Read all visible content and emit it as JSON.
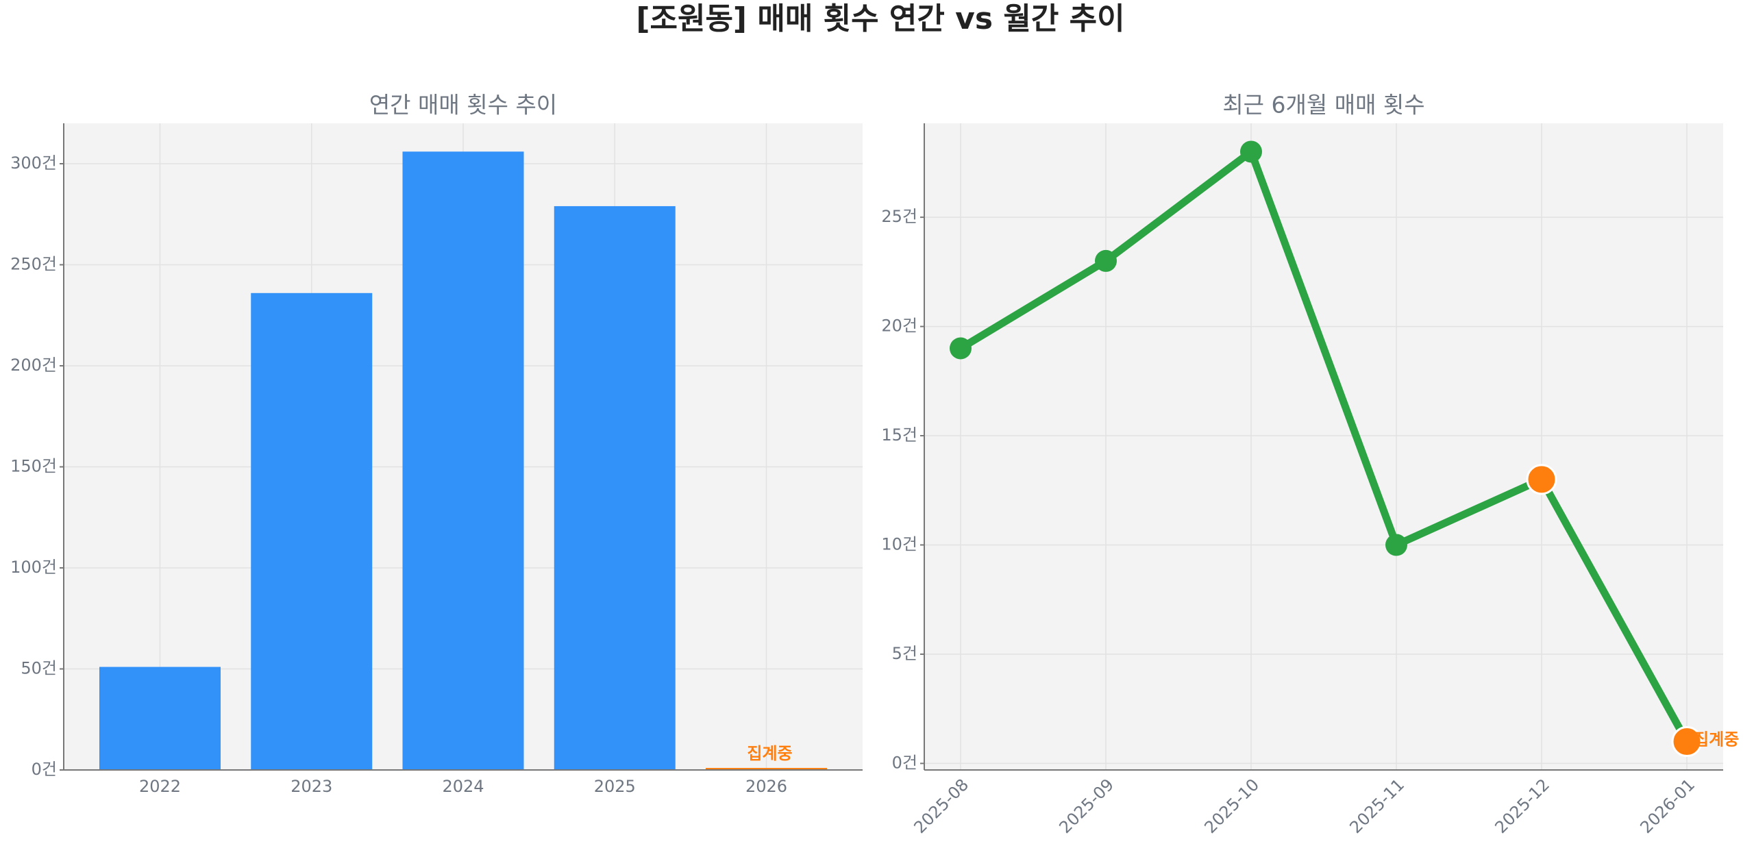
{
  "title": "[조원동] 매매 횟수 연간 vs 월간 추이",
  "chart_data": [
    {
      "type": "bar",
      "title": "연간 매매 횟수 추이",
      "categories": [
        "2022",
        "2023",
        "2024",
        "2025",
        "2026"
      ],
      "values": [
        51,
        236,
        306,
        279,
        1
      ],
      "colors": [
        "#3292f9",
        "#3292f9",
        "#3292f9",
        "#3292f9",
        "#ff7f0e"
      ],
      "annotation": "집계중",
      "ylim": [
        0,
        320
      ],
      "yticks": [
        {
          "value": 0,
          "label": "0건"
        },
        {
          "value": 50,
          "label": "50건"
        },
        {
          "value": 100,
          "label": "100건"
        },
        {
          "value": 150,
          "label": "150건"
        },
        {
          "value": 200,
          "label": "200건"
        },
        {
          "value": 250,
          "label": "250건"
        },
        {
          "value": 300,
          "label": "300건"
        }
      ],
      "grid": true
    },
    {
      "type": "line",
      "title": "최근 6개월 매매 횟수",
      "categories": [
        "2025-08",
        "2025-09",
        "2025-10",
        "2025-11",
        "2025-12",
        "2026-01"
      ],
      "values": [
        19,
        23,
        28,
        10,
        13,
        1
      ],
      "color": "#2ca444",
      "marker_colors": [
        "#2ca444",
        "#2ca444",
        "#2ca444",
        "#2ca444",
        "#ff7f0e",
        "#ff7f0e"
      ],
      "annotation": "집계중",
      "ylim": [
        -0.3,
        29.3
      ],
      "yticks": [
        {
          "value": 0,
          "label": "0건"
        },
        {
          "value": 5,
          "label": "5건"
        },
        {
          "value": 10,
          "label": "10건"
        },
        {
          "value": 15,
          "label": "15건"
        },
        {
          "value": 20,
          "label": "20건"
        },
        {
          "value": 25,
          "label": "25건"
        }
      ],
      "grid": true
    }
  ]
}
